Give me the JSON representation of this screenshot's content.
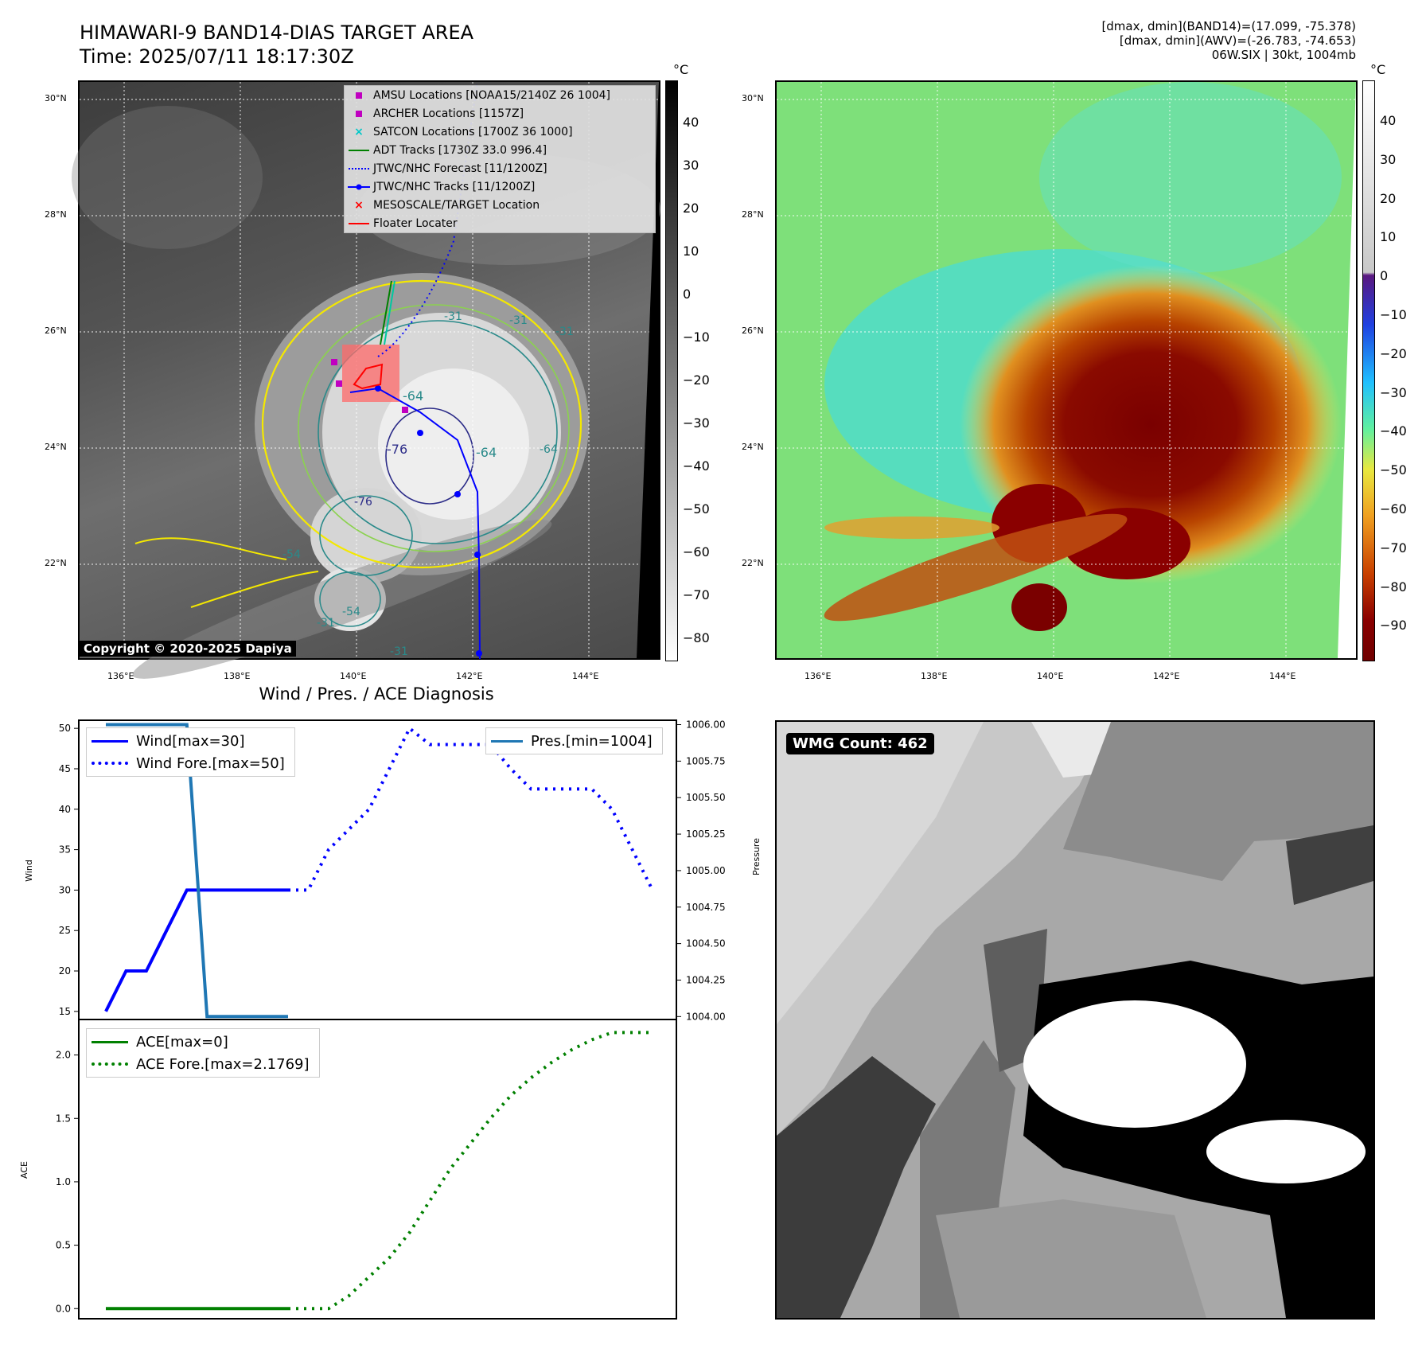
{
  "header": {
    "title": "HIMAWARI-9 BAND14-DIAS TARGET AREA",
    "time": "Time: 2025/07/11 18:17:30Z",
    "info_line1": "[dmax, dmin](BAND14)=(17.099, -75.378)",
    "info_line2": "[dmax, dmin](AWV)=(-26.783, -74.653)",
    "info_line3": "06W.SIX | 30kt, 1004mb"
  },
  "map": {
    "lat_labels": [
      "30°N",
      "28°N",
      "26°N",
      "24°N",
      "22°N"
    ],
    "lon_labels": [
      "136°E",
      "138°E",
      "140°E",
      "142°E",
      "144°E"
    ],
    "copyright": "Copyright © 2020-2025 Dapiya",
    "contour_labels": [
      "-31",
      "-31",
      "-31",
      "-64",
      "-64",
      "-76",
      "-64",
      "-54",
      "-54",
      "-31",
      "-31",
      "-76"
    ],
    "colors": {
      "track": "#0000ff",
      "adt": "#008000",
      "satcon": "#00c8c8",
      "amsu": "#c000c0",
      "archer": "#c000c0",
      "target": "#ff0000",
      "contour_yellow": "#f4e800",
      "contour_teal": "#2a8a8a",
      "contour_green": "#8bd24e",
      "contour_navy": "#2c2c88"
    }
  },
  "legend": [
    {
      "icon": "square-magenta-marker",
      "label": "AMSU Locations [NOAA15/2140Z 26 1004]"
    },
    {
      "icon": "square-magenta-marker",
      "label": "ARCHER Locations [1157Z]"
    },
    {
      "icon": "x-cyan-marker",
      "label": "SATCON Locations [1700Z 36 1000]"
    },
    {
      "icon": "green-line",
      "label": "ADT Tracks [1730Z 33.0 996.4]"
    },
    {
      "icon": "blue-dotted-line",
      "label": "JTWC/NHC Forecast [11/1200Z]"
    },
    {
      "icon": "blue-line-dot",
      "label": "JTWC/NHC Tracks [11/1200Z]"
    },
    {
      "icon": "x-red-marker",
      "label": "MESOSCALE/TARGET Location"
    },
    {
      "icon": "red-line",
      "label": "Floater Locater"
    }
  ],
  "colorbar_left": {
    "unit": "°C",
    "ticks": [
      "40",
      "30",
      "20",
      "10",
      "0",
      "−10",
      "−20",
      "−30",
      "−40",
      "−50",
      "−60",
      "−70",
      "−80"
    ]
  },
  "colorbar_right": {
    "unit": "°C",
    "ticks": [
      "40",
      "30",
      "20",
      "10",
      "0",
      "−10",
      "−20",
      "−30",
      "−40",
      "−50",
      "−60",
      "−70",
      "−80",
      "−90"
    ]
  },
  "wmg": {
    "badge": "WMG Count: 462"
  },
  "diag": {
    "title": "Wind / Pres. / ACE Diagnosis",
    "wind_ylabel": "Wind",
    "pres_ylabel": "Pressure",
    "ace_ylabel": "ACE",
    "wind_ticks": [
      "50",
      "45",
      "40",
      "35",
      "30",
      "25",
      "20",
      "15"
    ],
    "pres_ticks": [
      "1006.00",
      "1005.75",
      "1005.50",
      "1005.25",
      "1005.00",
      "1004.75",
      "1004.50",
      "1004.25",
      "1004.00"
    ],
    "ace_ticks": [
      "2.0",
      "1.5",
      "1.0",
      "0.5",
      "0.0"
    ],
    "legend_wind": "Wind[max=30]",
    "legend_wind_fore": "Wind Fore.[max=50]",
    "legend_pres": "Pres.[min=1004]",
    "legend_ace": "ACE[max=0]",
    "legend_ace_fore": "ACE Fore.[max=2.1769]",
    "colors": {
      "wind": "#0000ff",
      "pres": "#1f77b4",
      "ace": "#008000"
    }
  },
  "chart_data": {
    "type": "line",
    "title": "Wind / Pres. / ACE Diagnosis",
    "x": [
      0,
      1,
      2,
      3,
      4,
      5,
      6,
      7,
      8,
      9,
      10,
      11,
      12,
      13,
      14,
      15,
      16,
      17,
      18,
      19,
      20,
      21,
      22,
      23,
      24,
      25,
      26,
      27
    ],
    "series": [
      {
        "name": "Wind[max=30]",
        "axis": "wind",
        "x": [
          0,
          1,
          2,
          3,
          4,
          5,
          6,
          7,
          8,
          9
        ],
        "values": [
          15,
          20,
          20,
          25,
          30,
          30,
          30,
          30,
          30,
          30
        ]
      },
      {
        "name": "Wind Fore.[max=50]",
        "axis": "wind",
        "x": [
          9,
          10,
          11,
          12,
          13,
          14,
          15,
          16,
          17,
          18,
          19,
          20,
          21,
          22,
          23,
          24,
          25,
          26,
          27
        ],
        "values": [
          30,
          30,
          35,
          37.5,
          40,
          45,
          50,
          48,
          48,
          48,
          48,
          45,
          42.5,
          42.5,
          42.5,
          42.5,
          40,
          35,
          30
        ]
      },
      {
        "name": "Pres.[min=1004]",
        "axis": "pressure",
        "x": [
          0,
          1,
          2,
          3,
          4,
          5,
          6,
          7,
          8,
          9
        ],
        "values": [
          1006,
          1006,
          1006,
          1006,
          1006,
          1004,
          1004,
          1004,
          1004,
          1004
        ]
      },
      {
        "name": "ACE[max=0]",
        "axis": "ace",
        "x": [
          0,
          1,
          2,
          3,
          4,
          5,
          6,
          7,
          8,
          9
        ],
        "values": [
          0,
          0,
          0,
          0,
          0,
          0,
          0,
          0,
          0,
          0
        ]
      },
      {
        "name": "ACE Fore.[max=2.1769]",
        "axis": "ace",
        "x": [
          9,
          10,
          11,
          12,
          13,
          14,
          15,
          16,
          17,
          18,
          19,
          20,
          21,
          22,
          23,
          24,
          25,
          26,
          27
        ],
        "values": [
          0,
          0,
          0,
          0.1,
          0.25,
          0.4,
          0.6,
          0.85,
          1.1,
          1.3,
          1.5,
          1.68,
          1.82,
          1.94,
          2.04,
          2.12,
          2.1769,
          2.1769,
          2.1769
        ]
      }
    ],
    "wind_ylim": [
      14,
      51
    ],
    "pressure_ylim": [
      1003.98,
      1006.03
    ],
    "ace_ylim": [
      -0.08,
      2.28
    ],
    "grid": false,
    "legend_placement": "upper-left"
  }
}
